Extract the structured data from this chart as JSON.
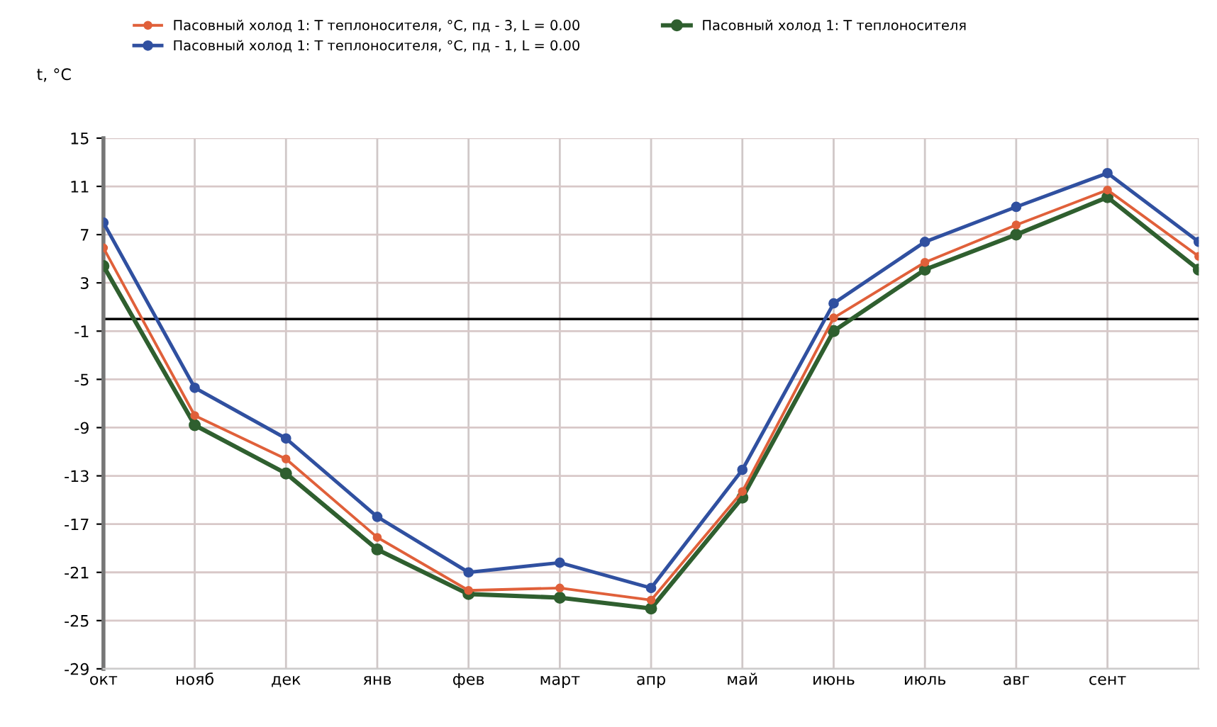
{
  "chart_data": {
    "type": "line",
    "ylabel": "t, °C",
    "categories": [
      "окт",
      "нояб",
      "дек",
      "янв",
      "фев",
      "март",
      "апр",
      "май",
      "июнь",
      "июль",
      "авг",
      "сент",
      null
    ],
    "ylim": [
      -29,
      15
    ],
    "yticks": [
      15,
      11,
      7,
      3,
      -1,
      -5,
      -9,
      -13,
      -17,
      -21,
      -25,
      -29
    ],
    "grid": true,
    "legend": "top",
    "marker": "circle",
    "line_style": "solid",
    "ref_lines": [
      {
        "axis": "y",
        "value": 0,
        "label": null,
        "color": "#000000"
      }
    ],
    "series": [
      {
        "name": "Пасовный холод 1: Т теплоносителя, °С, пд - 3, L = 0.00",
        "color": "#e0603a",
        "values": [
          5.9,
          -8,
          -11.6,
          -18.1,
          -22.5,
          -22.3,
          -23.3,
          -14.3,
          0.1,
          4.7,
          7.8,
          10.7,
          5.2
        ]
      },
      {
        "name": "Пасовный холод 1: Т теплоносителя, °С, пд - 1, L = 0.00",
        "color": "#3050a0",
        "values": [
          8,
          -5.7,
          -9.9,
          -16.4,
          -21,
          -20.2,
          -22.3,
          -12.5,
          1.3,
          6.4,
          9.3,
          12.1,
          6.4
        ]
      },
      {
        "name": "Пасовный холод 1: Т теплоносителя",
        "color": "#2f5f2f",
        "values": [
          4.4,
          -8.8,
          -12.8,
          -19.1,
          -22.8,
          -23.1,
          -24,
          -14.8,
          -1,
          4.1,
          7,
          10.1,
          4.1
        ]
      }
    ]
  }
}
